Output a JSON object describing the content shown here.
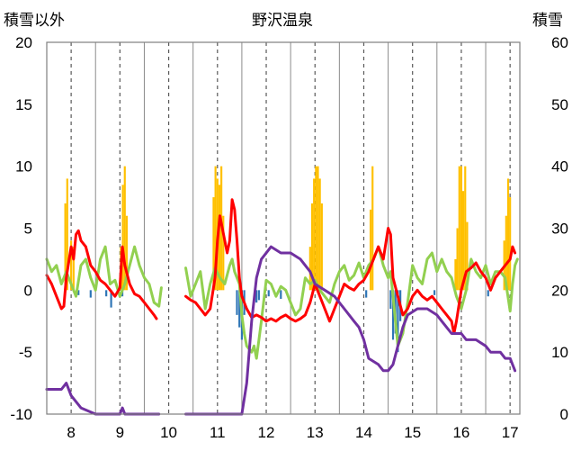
{
  "chart_data": {
    "type": "bar+line",
    "title": "野沢温泉",
    "left_axis_label": "積雪以外",
    "right_axis_label": "積雪",
    "left_ylim": [
      -10,
      20
    ],
    "right_ylim": [
      0,
      60
    ],
    "left_ticks": [
      "-10",
      "-5",
      "0",
      "5",
      "10",
      "15",
      "20"
    ],
    "right_ticks": [
      "0",
      "10",
      "20",
      "30",
      "40",
      "50",
      "60"
    ],
    "x_range": [
      7.5,
      17.2
    ],
    "x_ticks": [
      "8",
      "9",
      "10",
      "11",
      "12",
      "13",
      "14",
      "15",
      "16",
      "17"
    ],
    "grid": true,
    "colors": {
      "precip_bar": "#FFC000",
      "snow_change_bar": "#2E75B6",
      "red_line": "#FF0000",
      "green_line": "#92D050",
      "purple_line": "#7030A0",
      "grid": "#595959"
    },
    "precip_bars": [
      {
        "x": 7.88,
        "v": 7.0
      },
      {
        "x": 7.92,
        "v": 9.0
      },
      {
        "x": 8.0,
        "v": 4.0
      },
      {
        "x": 8.05,
        "v": 3.5
      },
      {
        "x": 9.02,
        "v": 3.5
      },
      {
        "x": 9.06,
        "v": 8.5
      },
      {
        "x": 9.1,
        "v": 10.0
      },
      {
        "x": 9.14,
        "v": 6.0
      },
      {
        "x": 10.92,
        "v": 7.5
      },
      {
        "x": 10.96,
        "v": 10.0
      },
      {
        "x": 11.0,
        "v": 9.0
      },
      {
        "x": 11.04,
        "v": 8.5
      },
      {
        "x": 11.08,
        "v": 10.0
      },
      {
        "x": 11.12,
        "v": 6.0
      },
      {
        "x": 12.9,
        "v": 3.5
      },
      {
        "x": 12.94,
        "v": 7.0
      },
      {
        "x": 12.98,
        "v": 9.0
      },
      {
        "x": 13.02,
        "v": 10.0
      },
      {
        "x": 13.06,
        "v": 10.0
      },
      {
        "x": 13.1,
        "v": 9.0
      },
      {
        "x": 13.14,
        "v": 7.0
      },
      {
        "x": 14.14,
        "v": 6.5
      },
      {
        "x": 14.18,
        "v": 10.0
      },
      {
        "x": 15.88,
        "v": 2.5
      },
      {
        "x": 15.92,
        "v": 5.0
      },
      {
        "x": 15.96,
        "v": 10.0
      },
      {
        "x": 16.0,
        "v": 10.0
      },
      {
        "x": 16.04,
        "v": 8.0
      },
      {
        "x": 16.08,
        "v": 10.0
      },
      {
        "x": 16.12,
        "v": 5.5
      },
      {
        "x": 16.88,
        "v": 4.0
      },
      {
        "x": 16.92,
        "v": 6.0
      },
      {
        "x": 16.96,
        "v": 9.0
      },
      {
        "x": 17.0,
        "v": 7.5
      }
    ],
    "snow_change_bars": [
      {
        "x": 8.15,
        "v": -0.4
      },
      {
        "x": 8.4,
        "v": -0.6
      },
      {
        "x": 8.72,
        "v": -0.5
      },
      {
        "x": 8.82,
        "v": -1.4
      },
      {
        "x": 9.05,
        "v": -0.5
      },
      {
        "x": 11.4,
        "v": -2.0
      },
      {
        "x": 11.45,
        "v": -3.0
      },
      {
        "x": 11.5,
        "v": -4.0
      },
      {
        "x": 11.55,
        "v": -2.0
      },
      {
        "x": 11.8,
        "v": -1.0
      },
      {
        "x": 11.85,
        "v": -0.8
      },
      {
        "x": 12.05,
        "v": -0.5
      },
      {
        "x": 12.3,
        "v": -0.7
      },
      {
        "x": 14.05,
        "v": -0.6
      },
      {
        "x": 14.55,
        "v": -1.5
      },
      {
        "x": 14.6,
        "v": -4.0
      },
      {
        "x": 14.65,
        "v": -3.5
      },
      {
        "x": 14.7,
        "v": -5.0
      },
      {
        "x": 14.75,
        "v": -2.5
      },
      {
        "x": 15.45,
        "v": -0.4
      },
      {
        "x": 16.55,
        "v": -0.5
      }
    ],
    "red_line": [
      [
        [
          7.5,
          1.2
        ],
        [
          7.6,
          0.5
        ],
        [
          7.7,
          -0.5
        ],
        [
          7.8,
          -1.5
        ],
        [
          7.85,
          -1.3
        ],
        [
          7.9,
          1.0
        ],
        [
          8.0,
          3.5
        ],
        [
          8.05,
          2.5
        ],
        [
          8.1,
          4.5
        ],
        [
          8.15,
          4.8
        ],
        [
          8.2,
          4.0
        ],
        [
          8.3,
          3.5
        ],
        [
          8.4,
          2.0
        ],
        [
          8.5,
          1.5
        ],
        [
          8.6,
          0.8
        ],
        [
          8.7,
          0.5
        ],
        [
          8.8,
          0.0
        ],
        [
          8.9,
          -0.5
        ],
        [
          9.0,
          0.2
        ],
        [
          9.05,
          3.5
        ],
        [
          9.1,
          2.0
        ],
        [
          9.2,
          0.5
        ],
        [
          9.3,
          -0.3
        ],
        [
          9.4,
          -0.5
        ],
        [
          9.5,
          -1.0
        ],
        [
          9.6,
          -1.5
        ],
        [
          9.7,
          -2.0
        ],
        [
          9.75,
          -2.3
        ]
      ],
      [
        [
          10.35,
          -0.5
        ],
        [
          10.45,
          -0.8
        ],
        [
          10.55,
          -1.0
        ],
        [
          10.65,
          -1.5
        ],
        [
          10.75,
          -2.0
        ],
        [
          10.85,
          -1.5
        ],
        [
          10.95,
          1.0
        ],
        [
          11.0,
          4.0
        ],
        [
          11.05,
          6.0
        ],
        [
          11.1,
          5.0
        ],
        [
          11.2,
          3.0
        ],
        [
          11.25,
          4.0
        ],
        [
          11.3,
          7.3
        ],
        [
          11.35,
          6.5
        ],
        [
          11.4,
          4.0
        ],
        [
          11.45,
          1.0
        ],
        [
          11.5,
          -0.5
        ],
        [
          11.6,
          -1.5
        ],
        [
          11.7,
          -2.2
        ],
        [
          11.8,
          -2.0
        ],
        [
          11.9,
          -2.2
        ],
        [
          12.0,
          -2.5
        ],
        [
          12.1,
          -2.3
        ],
        [
          12.2,
          -2.5
        ],
        [
          12.3,
          -2.2
        ],
        [
          12.4,
          -2.0
        ],
        [
          12.5,
          -2.3
        ],
        [
          12.6,
          -2.5
        ],
        [
          12.7,
          -2.3
        ],
        [
          12.8,
          -2.0
        ],
        [
          12.9,
          -1.0
        ],
        [
          13.0,
          0.5
        ],
        [
          13.1,
          -0.5
        ],
        [
          13.2,
          -1.5
        ],
        [
          13.3,
          -2.5
        ],
        [
          13.4,
          -1.5
        ],
        [
          13.5,
          -0.5
        ],
        [
          13.6,
          0.5
        ],
        [
          13.7,
          0.2
        ],
        [
          13.8,
          0.0
        ],
        [
          13.9,
          0.5
        ],
        [
          14.0,
          0.8
        ],
        [
          14.1,
          1.5
        ],
        [
          14.2,
          2.5
        ],
        [
          14.3,
          3.5
        ],
        [
          14.4,
          2.5
        ],
        [
          14.5,
          5.0
        ],
        [
          14.55,
          4.5
        ],
        [
          14.6,
          1.0
        ],
        [
          14.7,
          -0.5
        ],
        [
          14.8,
          -2.0
        ],
        [
          14.9,
          -1.5
        ],
        [
          15.0,
          -0.5
        ],
        [
          15.1,
          0.0
        ],
        [
          15.2,
          -0.5
        ],
        [
          15.3,
          -0.8
        ],
        [
          15.4,
          -0.5
        ],
        [
          15.5,
          -1.0
        ],
        [
          15.6,
          -1.5
        ],
        [
          15.7,
          -2.0
        ],
        [
          15.8,
          -2.5
        ],
        [
          15.85,
          -3.5
        ],
        [
          15.9,
          -2.5
        ],
        [
          16.0,
          0.0
        ],
        [
          16.1,
          1.5
        ],
        [
          16.2,
          1.8
        ],
        [
          16.3,
          2.2
        ],
        [
          16.4,
          1.5
        ],
        [
          16.5,
          1.0
        ],
        [
          16.6,
          0.0
        ],
        [
          16.7,
          1.0
        ],
        [
          16.8,
          1.5
        ],
        [
          16.9,
          2.0
        ],
        [
          17.0,
          2.5
        ],
        [
          17.05,
          3.5
        ],
        [
          17.1,
          3.0
        ]
      ]
    ],
    "green_line": [
      [
        [
          7.5,
          2.5
        ],
        [
          7.6,
          1.5
        ],
        [
          7.7,
          2.0
        ],
        [
          7.8,
          0.5
        ],
        [
          7.9,
          1.5
        ],
        [
          8.0,
          0.5
        ],
        [
          8.1,
          -0.5
        ],
        [
          8.2,
          2.0
        ],
        [
          8.3,
          2.5
        ],
        [
          8.4,
          1.0
        ],
        [
          8.5,
          0.0
        ],
        [
          8.6,
          2.5
        ],
        [
          8.7,
          3.5
        ],
        [
          8.8,
          0.5
        ],
        [
          8.9,
          0.8
        ],
        [
          9.0,
          -0.5
        ],
        [
          9.1,
          0.5
        ],
        [
          9.2,
          2.0
        ],
        [
          9.3,
          3.5
        ],
        [
          9.4,
          2.0
        ],
        [
          9.5,
          1.0
        ],
        [
          9.6,
          0.5
        ],
        [
          9.7,
          -1.0
        ],
        [
          9.8,
          -1.3
        ],
        [
          9.85,
          0.2
        ]
      ],
      [
        [
          10.35,
          1.8
        ],
        [
          10.45,
          -0.5
        ],
        [
          10.55,
          0.5
        ],
        [
          10.65,
          1.5
        ],
        [
          10.75,
          -1.5
        ],
        [
          10.85,
          0.5
        ],
        [
          10.95,
          1.8
        ],
        [
          11.05,
          1.0
        ],
        [
          11.15,
          0.5
        ],
        [
          11.25,
          2.0
        ],
        [
          11.3,
          2.5
        ],
        [
          11.35,
          1.5
        ],
        [
          11.45,
          0.5
        ],
        [
          11.5,
          -2.0
        ],
        [
          11.55,
          -3.5
        ],
        [
          11.6,
          -4.5
        ],
        [
          11.7,
          -5.0
        ],
        [
          11.75,
          -4.5
        ],
        [
          11.8,
          -5.5
        ],
        [
          11.9,
          -2.5
        ],
        [
          12.0,
          0.8
        ],
        [
          12.1,
          0.5
        ],
        [
          12.2,
          -0.5
        ],
        [
          12.3,
          0.3
        ],
        [
          12.4,
          0.0
        ],
        [
          12.5,
          -1.0
        ],
        [
          12.6,
          -2.0
        ],
        [
          12.7,
          -1.5
        ],
        [
          12.8,
          1.0
        ],
        [
          12.9,
          0.5
        ],
        [
          13.0,
          0.8
        ],
        [
          13.1,
          0.0
        ],
        [
          13.2,
          -0.5
        ],
        [
          13.3,
          -1.0
        ],
        [
          13.4,
          0.5
        ],
        [
          13.5,
          1.5
        ],
        [
          13.6,
          2.0
        ],
        [
          13.7,
          0.8
        ],
        [
          13.8,
          1.2
        ],
        [
          13.9,
          2.2
        ],
        [
          14.0,
          1.0
        ],
        [
          14.1,
          2.0
        ],
        [
          14.2,
          2.5
        ],
        [
          14.3,
          3.5
        ],
        [
          14.4,
          2.0
        ],
        [
          14.5,
          1.0
        ],
        [
          14.55,
          1.5
        ],
        [
          14.6,
          -0.5
        ],
        [
          14.65,
          -2.5
        ],
        [
          14.7,
          -4.5
        ],
        [
          14.8,
          -3.5
        ],
        [
          14.9,
          -1.0
        ],
        [
          15.0,
          2.0
        ],
        [
          15.1,
          1.0
        ],
        [
          15.2,
          0.5
        ],
        [
          15.3,
          2.5
        ],
        [
          15.4,
          3.0
        ],
        [
          15.5,
          1.5
        ],
        [
          15.6,
          2.5
        ],
        [
          15.7,
          1.5
        ],
        [
          15.8,
          1.0
        ],
        [
          15.9,
          -0.5
        ],
        [
          16.0,
          -1.5
        ],
        [
          16.1,
          0.0
        ],
        [
          16.2,
          2.5
        ],
        [
          16.3,
          1.5
        ],
        [
          16.4,
          1.0
        ],
        [
          16.5,
          2.0
        ],
        [
          16.6,
          0.5
        ],
        [
          16.7,
          1.5
        ],
        [
          16.8,
          1.5
        ],
        [
          16.9,
          1.0
        ],
        [
          17.0,
          -1.7
        ],
        [
          17.05,
          0.5
        ],
        [
          17.1,
          2.0
        ],
        [
          17.15,
          2.5
        ]
      ]
    ],
    "purple_line": [
      [
        [
          7.5,
          4
        ],
        [
          7.8,
          4
        ],
        [
          7.9,
          5
        ],
        [
          8.0,
          3
        ],
        [
          8.2,
          1
        ],
        [
          8.5,
          0
        ],
        [
          9.0,
          0
        ],
        [
          9.05,
          1
        ],
        [
          9.1,
          0
        ],
        [
          9.8,
          0
        ]
      ],
      [
        [
          10.35,
          0
        ],
        [
          11.5,
          0
        ],
        [
          11.6,
          5
        ],
        [
          11.7,
          15
        ],
        [
          11.8,
          22
        ],
        [
          11.9,
          25
        ],
        [
          12.1,
          27
        ],
        [
          12.3,
          26
        ],
        [
          12.5,
          26
        ],
        [
          12.7,
          25
        ],
        [
          12.9,
          23
        ],
        [
          13.0,
          21
        ],
        [
          13.2,
          20
        ],
        [
          13.4,
          19
        ],
        [
          13.6,
          17
        ],
        [
          13.8,
          15
        ],
        [
          13.9,
          14
        ],
        [
          14.0,
          12
        ],
        [
          14.1,
          9
        ],
        [
          14.3,
          8
        ],
        [
          14.4,
          7
        ],
        [
          14.5,
          7
        ],
        [
          14.6,
          8
        ],
        [
          14.7,
          11
        ],
        [
          14.8,
          14
        ],
        [
          14.9,
          16
        ],
        [
          15.1,
          17
        ],
        [
          15.3,
          17
        ],
        [
          15.5,
          16
        ],
        [
          15.6,
          15
        ],
        [
          15.8,
          13
        ],
        [
          16.0,
          13
        ],
        [
          16.1,
          12
        ],
        [
          16.3,
          12
        ],
        [
          16.5,
          11
        ],
        [
          16.6,
          10
        ],
        [
          16.8,
          10
        ],
        [
          16.9,
          9
        ],
        [
          17.0,
          9
        ],
        [
          17.05,
          8
        ],
        [
          17.1,
          7
        ]
      ]
    ]
  }
}
